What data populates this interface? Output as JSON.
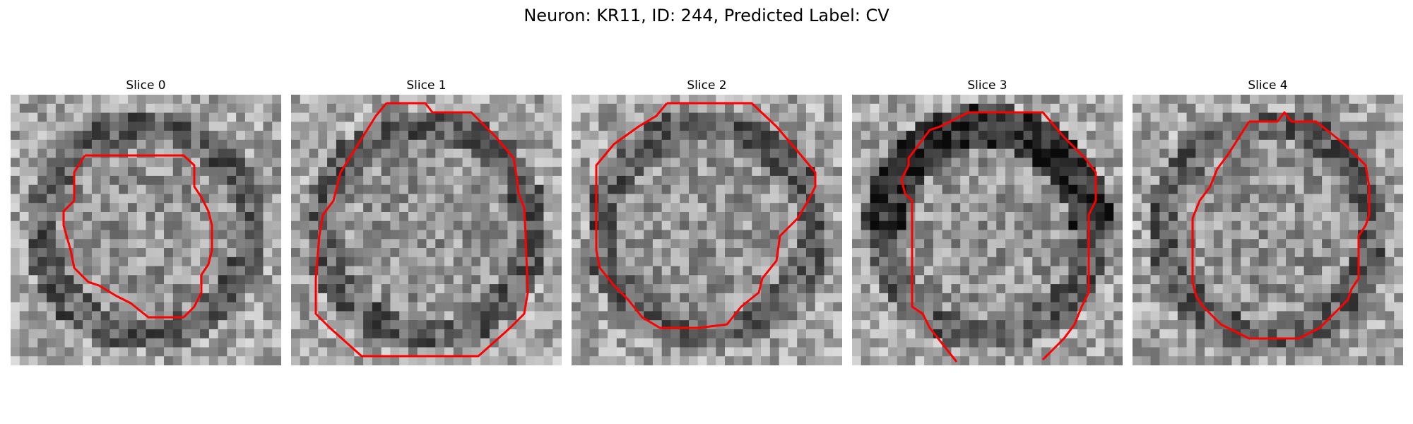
{
  "figure": {
    "title": "Neuron: KR11, ID: 244, Predicted Label: CV"
  },
  "panels": [
    {
      "label": "Slice 0"
    },
    {
      "label": "Slice 1"
    },
    {
      "label": "Slice 2"
    },
    {
      "label": "Slice 3"
    },
    {
      "label": "Slice 4"
    }
  ],
  "colors": {
    "contour": "#ff0000",
    "colormap": "grayscale"
  }
}
